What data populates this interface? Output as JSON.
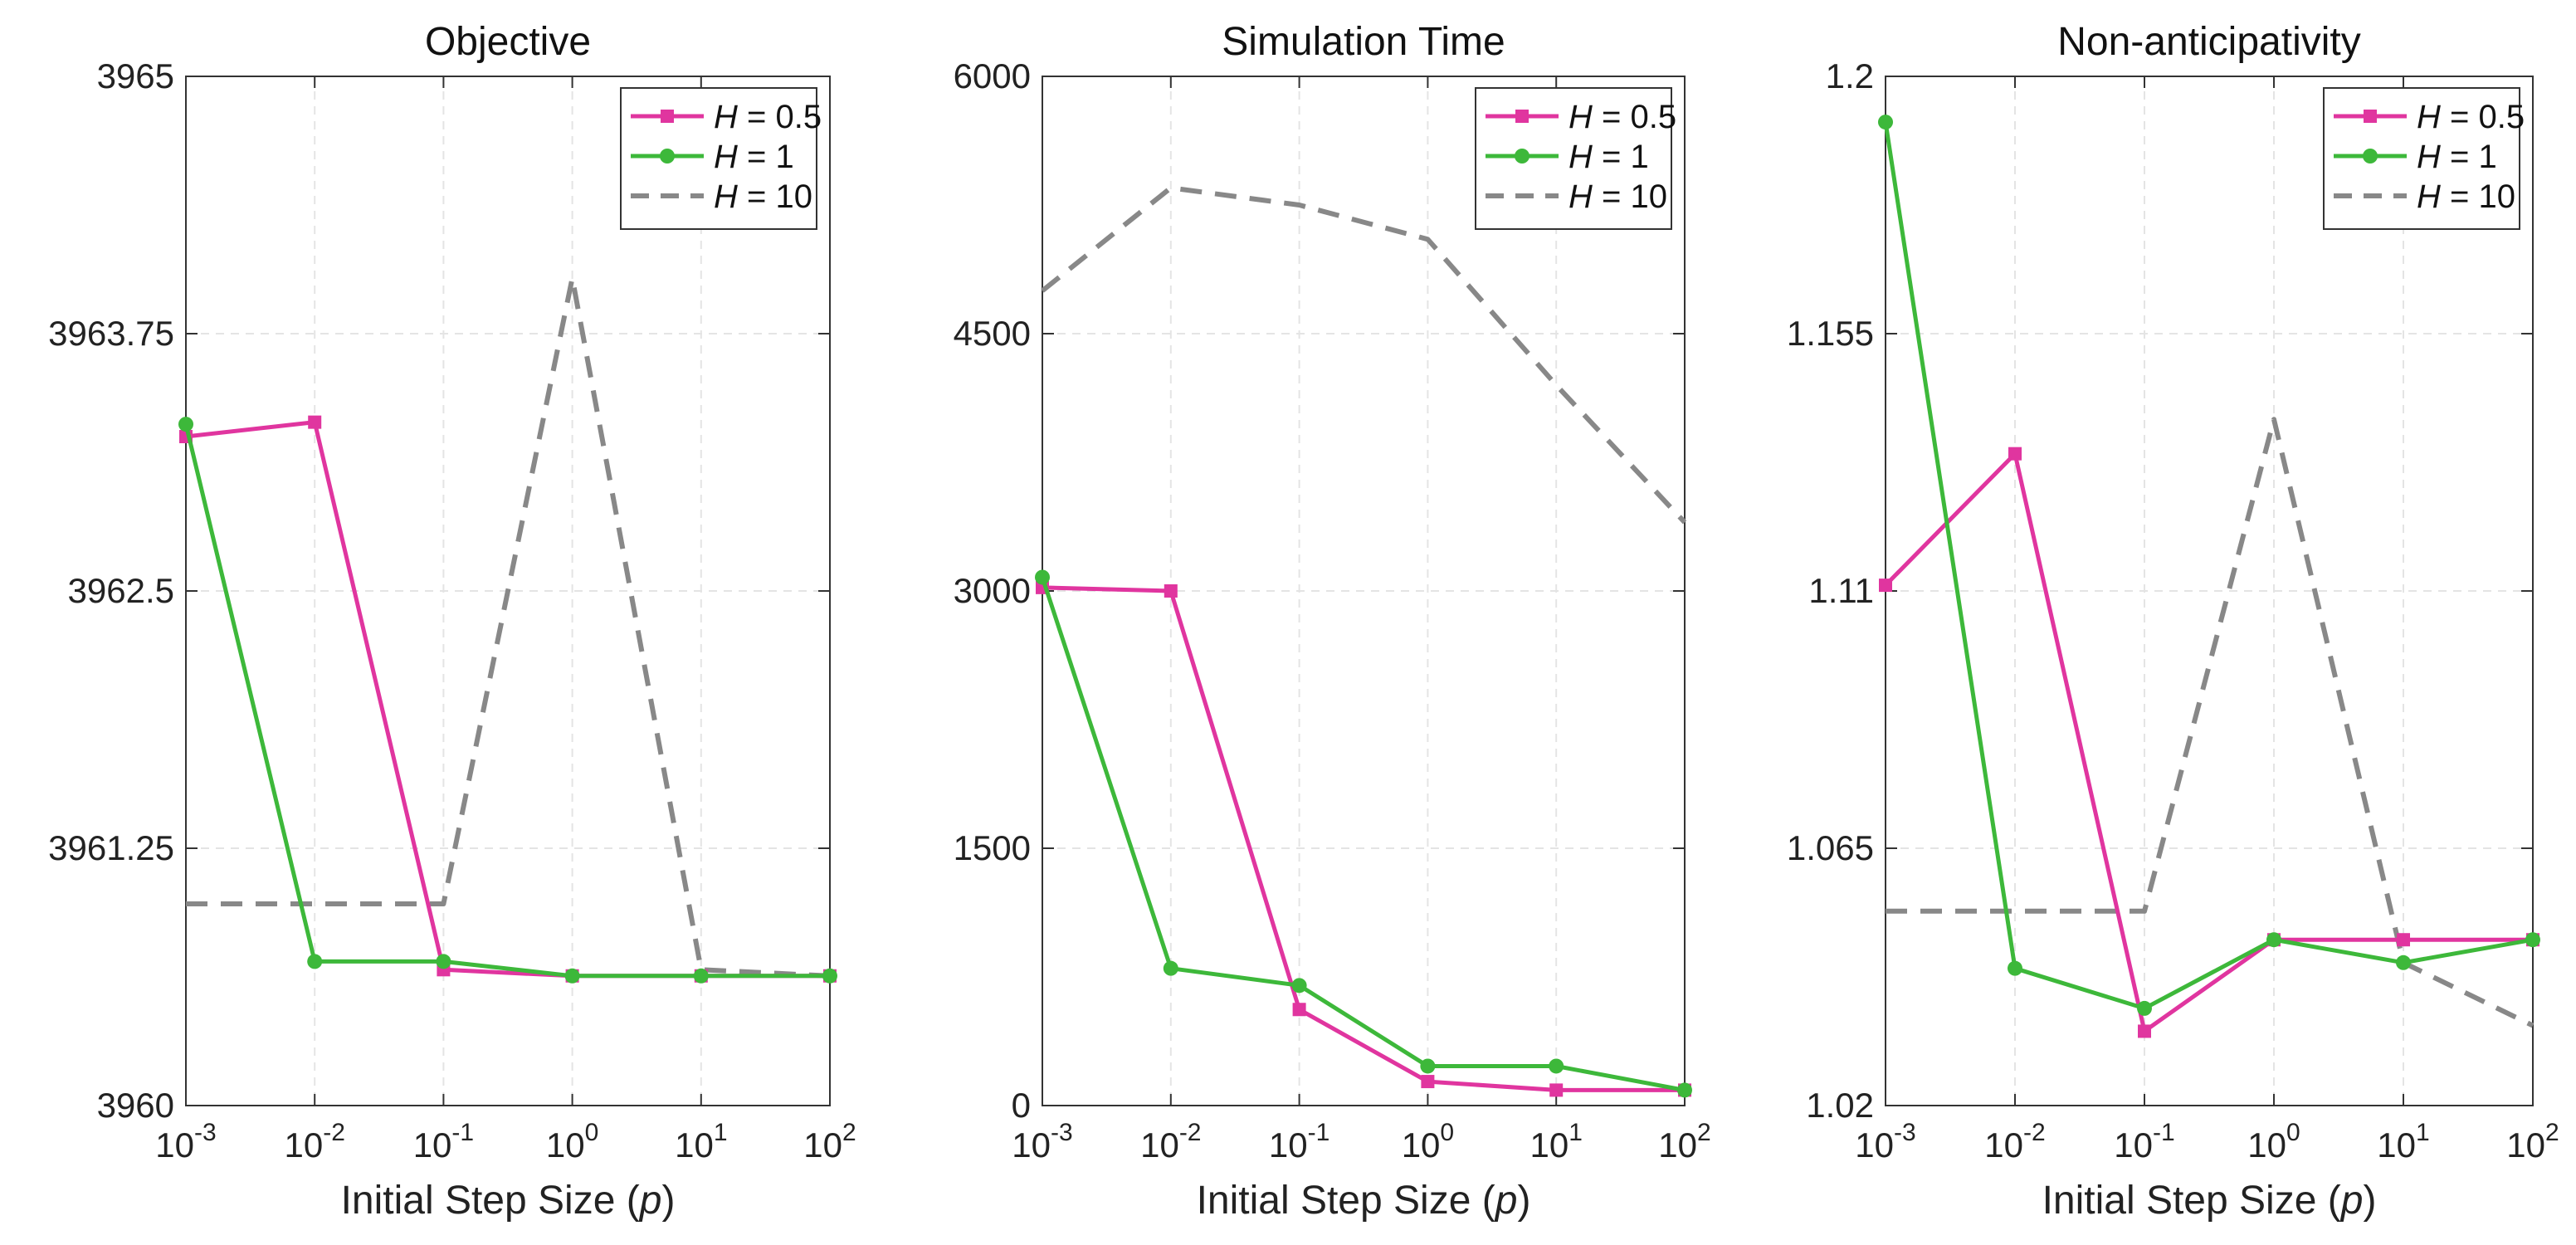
{
  "chart_data": [
    {
      "type": "line",
      "title": "Objective",
      "xlabel_prefix": "Initial Step Size (",
      "xlabel_var": "p",
      "xlabel_suffix": ")",
      "xscale": "log",
      "x": [
        0.001,
        0.01,
        0.1,
        1,
        10,
        100
      ],
      "x_tick_base": "10",
      "x_tick_exponents": [
        "-3",
        "-2",
        "-1",
        "0",
        "1",
        "2"
      ],
      "ylim": [
        3960,
        3965
      ],
      "yticks": [
        "3960",
        "3961.25",
        "3962.5",
        "3963.75",
        "3965"
      ],
      "ytick_values": [
        3960,
        3961.25,
        3962.5,
        3963.75,
        3965
      ],
      "grid": true,
      "legend_position": "top-right",
      "series": [
        {
          "name": "H = 0.5",
          "var": "H",
          "rel": " = 0.5",
          "color": "#e0359f",
          "marker": "square",
          "style": "solid",
          "x": [
            0.001,
            0.01,
            0.1,
            1,
            10,
            100
          ],
          "values": [
            3963.25,
            3963.32,
            3960.66,
            3960.63,
            3960.63,
            3960.63
          ]
        },
        {
          "name": "H = 1",
          "var": "H",
          "rel": " = 1",
          "color": "#3db83a",
          "marker": "circle",
          "style": "solid",
          "x": [
            0.001,
            0.01,
            0.1,
            1,
            10,
            100
          ],
          "values": [
            3963.31,
            3960.7,
            3960.7,
            3960.63,
            3960.63,
            3960.63
          ]
        },
        {
          "name": "H = 10",
          "var": "H",
          "rel": " = 10",
          "color": "#888888",
          "marker": "none",
          "style": "dashed",
          "x": [
            0.001,
            0.1,
            1,
            10,
            100
          ],
          "values": [
            3960.98,
            3960.98,
            3964.02,
            3960.66,
            3960.63
          ]
        }
      ]
    },
    {
      "type": "line",
      "title": "Simulation Time",
      "xlabel_prefix": "Initial Step Size (",
      "xlabel_var": "p",
      "xlabel_suffix": ")",
      "xscale": "log",
      "x": [
        0.001,
        0.01,
        0.1,
        1,
        10,
        100
      ],
      "x_tick_base": "10",
      "x_tick_exponents": [
        "-3",
        "-2",
        "-1",
        "0",
        "1",
        "2"
      ],
      "ylim": [
        0,
        6000
      ],
      "yticks": [
        "0",
        "1500",
        "3000",
        "4500",
        "6000"
      ],
      "ytick_values": [
        0,
        1500,
        3000,
        4500,
        6000
      ],
      "grid": true,
      "legend_position": "top-right",
      "series": [
        {
          "name": "H = 0.5",
          "var": "H",
          "rel": " = 0.5",
          "color": "#e0359f",
          "marker": "square",
          "style": "solid",
          "x": [
            0.001,
            0.01,
            0.1,
            1,
            10,
            100
          ],
          "values": [
            3020,
            3000,
            560,
            140,
            90,
            90
          ]
        },
        {
          "name": "H = 1",
          "var": "H",
          "rel": " = 1",
          "color": "#3db83a",
          "marker": "circle",
          "style": "solid",
          "x": [
            0.001,
            0.01,
            0.1,
            1,
            10,
            100
          ],
          "values": [
            3080,
            800,
            700,
            230,
            230,
            90
          ]
        },
        {
          "name": "H = 10",
          "var": "H",
          "rel": " = 10",
          "color": "#888888",
          "marker": "none",
          "style": "dashed",
          "x": [
            0.001,
            0.01,
            0.1,
            1,
            10,
            100
          ],
          "values": [
            4750,
            5350,
            5250,
            5050,
            4200,
            3400
          ]
        }
      ]
    },
    {
      "type": "line",
      "title": "Non-anticipativity",
      "xlabel_prefix": "Initial Step Size (",
      "xlabel_var": "p",
      "xlabel_suffix": ")",
      "xscale": "log",
      "x": [
        0.001,
        0.01,
        0.1,
        1,
        10,
        100
      ],
      "x_tick_base": "10",
      "x_tick_exponents": [
        "-3",
        "-2",
        "-1",
        "0",
        "1",
        "2"
      ],
      "ylim": [
        1.02,
        1.2
      ],
      "yticks": [
        "1.02",
        "1.065",
        "1.11",
        "1.155",
        "1.2"
      ],
      "ytick_values": [
        1.02,
        1.065,
        1.11,
        1.155,
        1.2
      ],
      "grid": true,
      "legend_position": "top-right",
      "series": [
        {
          "name": "H = 0.5",
          "var": "H",
          "rel": " = 0.5",
          "color": "#e0359f",
          "marker": "square",
          "style": "solid",
          "x": [
            0.001,
            0.01,
            0.1,
            1,
            10,
            100
          ],
          "values": [
            1.111,
            1.134,
            1.033,
            1.049,
            1.049,
            1.049
          ]
        },
        {
          "name": "H = 1",
          "var": "H",
          "rel": " = 1",
          "color": "#3db83a",
          "marker": "circle",
          "style": "solid",
          "x": [
            0.001,
            0.01,
            0.1,
            1,
            10,
            100
          ],
          "values": [
            1.192,
            1.044,
            1.037,
            1.049,
            1.045,
            1.049
          ]
        },
        {
          "name": "H = 10",
          "var": "H",
          "rel": " = 10",
          "color": "#888888",
          "marker": "none",
          "style": "dashed",
          "x": [
            0.001,
            0.1,
            1,
            10,
            100
          ],
          "values": [
            1.054,
            1.054,
            1.14,
            1.045,
            1.034
          ]
        }
      ]
    }
  ]
}
